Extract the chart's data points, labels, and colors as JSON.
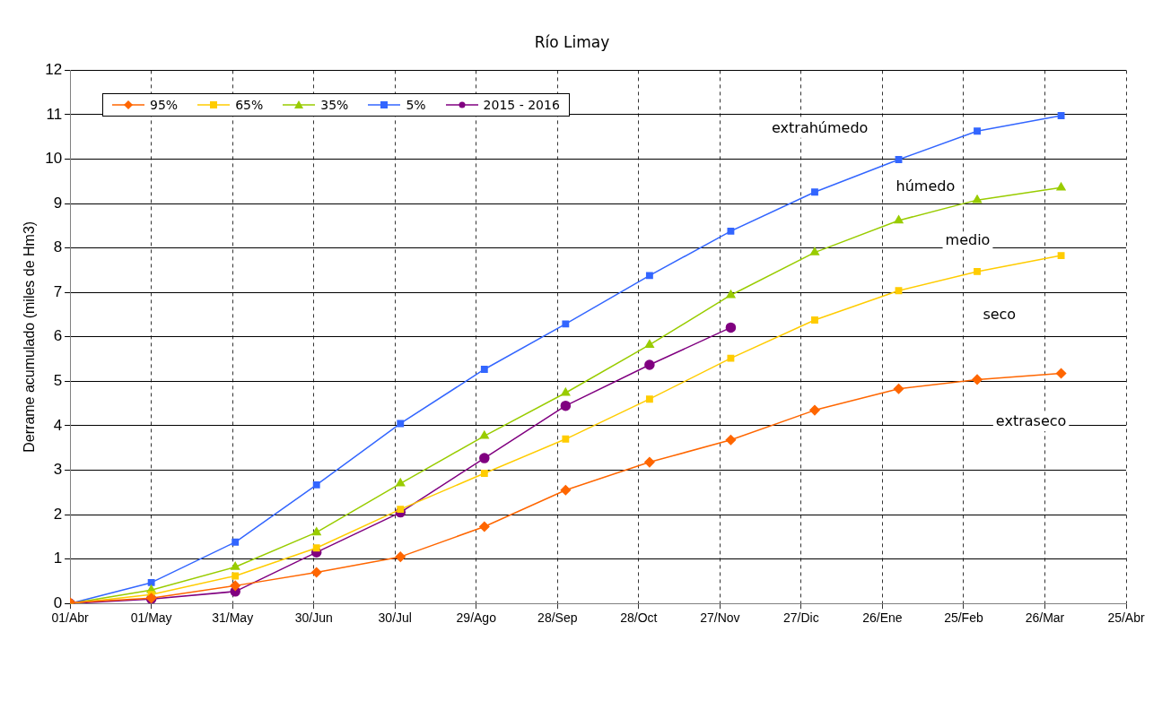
{
  "chart_data": {
    "type": "line",
    "title": "Río Limay",
    "ylabel": "Derrame acumulado (miles de Hm3)",
    "x": [
      "2015-04-01",
      "2015-05-01",
      "2015-06-01",
      "2015-07-01",
      "2015-08-01",
      "2015-09-01",
      "2015-10-01",
      "2015-11-01",
      "2015-12-01",
      "2016-01-01",
      "2016-02-01",
      "2016-03-01",
      "2016-04-01"
    ],
    "series": [
      {
        "name": "95%",
        "color": "#ff6600",
        "marker": "diamond",
        "values": [
          0.02,
          0.12,
          0.4,
          0.7,
          1.05,
          1.73,
          2.55,
          3.18,
          3.68,
          4.35,
          4.83,
          5.04,
          5.18
        ]
      },
      {
        "name": "65%",
        "color": "#ffcc00",
        "marker": "square",
        "values": [
          0,
          0.2,
          0.62,
          1.25,
          2.12,
          2.93,
          3.7,
          4.6,
          5.52,
          6.38,
          7.04,
          7.47,
          7.83
        ]
      },
      {
        "name": "35%",
        "color": "#99cc00",
        "marker": "triangle",
        "values": [
          0,
          0.3,
          0.82,
          1.6,
          2.7,
          3.77,
          4.74,
          5.82,
          6.94,
          7.9,
          8.62,
          9.08,
          9.36
        ]
      },
      {
        "name": "5%",
        "color": "#3366ff",
        "marker": "square",
        "values": [
          0,
          0.47,
          1.38,
          2.67,
          4.05,
          5.27,
          6.29,
          7.38,
          8.38,
          9.26,
          9.99,
          10.63,
          10.98
        ]
      },
      {
        "name": "2015 - 2016",
        "color": "#800080",
        "marker": "circle",
        "x": [
          "2015-04-01",
          "2015-05-01",
          "2015-06-01",
          "2015-07-01",
          "2015-08-01",
          "2015-09-01",
          "2015-10-01",
          "2015-11-01",
          "2015-12-01"
        ],
        "values": [
          0,
          0.1,
          0.27,
          1.15,
          2.05,
          3.27,
          4.45,
          5.37,
          6.21
        ]
      }
    ],
    "xlim": [
      "2015-04-01",
      "2016-04-25"
    ],
    "xticks": [
      {
        "value": "2015-04-01",
        "label": "01/Abr"
      },
      {
        "value": "2015-05-01",
        "label": "01/May"
      },
      {
        "value": "2015-05-31",
        "label": "31/May"
      },
      {
        "value": "2015-06-30",
        "label": "30/Jun"
      },
      {
        "value": "2015-07-30",
        "label": "30/Jul"
      },
      {
        "value": "2015-08-29",
        "label": "29/Ago"
      },
      {
        "value": "2015-09-28",
        "label": "28/Sep"
      },
      {
        "value": "2015-10-28",
        "label": "28/Oct"
      },
      {
        "value": "2015-11-27",
        "label": "27/Nov"
      },
      {
        "value": "2015-12-27",
        "label": "27/Dic"
      },
      {
        "value": "2016-01-26",
        "label": "26/Ene"
      },
      {
        "value": "2016-02-25",
        "label": "25/Feb"
      },
      {
        "value": "2016-03-26",
        "label": "26/Mar"
      },
      {
        "value": "2016-04-25",
        "label": "25/Abr"
      }
    ],
    "ylim": [
      0,
      12
    ],
    "yticks": [
      0,
      1,
      2,
      3,
      4,
      5,
      6,
      7,
      8,
      9,
      10,
      11,
      12
    ],
    "annotations": [
      "extrahúmedo",
      "húmedo",
      "medio",
      "seco",
      "extraseco"
    ],
    "grid": true,
    "legend": "top left",
    "line_style": "solid"
  }
}
